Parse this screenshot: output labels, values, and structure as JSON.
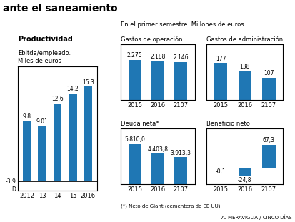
{
  "title": "ante el saneamiento",
  "annotations": [
    "En el primer semestre. Millones de euros",
    "(*) Neto de Giant (cementera de EE UU)",
    "A. MERAVIGLIA / CINCO DÍAS"
  ],
  "chart_data": [
    {
      "type": "bar",
      "title": "Productividad",
      "subtitle": "Ebitda/empleado.\nMiles de euros",
      "categories": [
        "2012",
        "13",
        "14",
        "15",
        "2016"
      ],
      "values": [
        9.8,
        9.01,
        12.6,
        14.2,
        15.3
      ],
      "ylim": [
        -1.5,
        18.5
      ],
      "data_labels": true,
      "tick_labels": "x",
      "annotations": [
        "-3,9",
        "D"
      ]
    },
    {
      "type": "bar",
      "title": "Gastos de operación",
      "categories": [
        "2015",
        "2016",
        "2107"
      ],
      "values": [
        2275,
        2188,
        2146
      ],
      "value_labels": [
        "2.275",
        "2.188",
        "2.146"
      ],
      "ylim": [
        0,
        3139.5
      ],
      "data_labels": true,
      "tick_labels": "x"
    },
    {
      "type": "bar",
      "title": "Gastos de administración",
      "categories": [
        "2015",
        "2016",
        "2107"
      ],
      "values": [
        177,
        138,
        107
      ],
      "value_labels": [
        "177",
        "138",
        "107"
      ],
      "ylim": [
        0,
        265.5
      ],
      "data_labels": true,
      "tick_labels": "x"
    },
    {
      "type": "bar",
      "title": "Deuda neta*",
      "categories": [
        "2015",
        "2016",
        "2107"
      ],
      "values": [
        5810.0,
        4403.8,
        3913.3
      ],
      "value_labels": [
        "5.810,0",
        "4.403,8",
        "3.913,3"
      ],
      "ylim": [
        0,
        8017.8
      ],
      "data_labels": true,
      "tick_labels": "x"
    },
    {
      "type": "bar",
      "title": "Beneficio neto",
      "categories": [
        "2015",
        "2016",
        "2107"
      ],
      "values": [
        -0.1,
        -24.8,
        67.3
      ],
      "value_labels": [
        "-0,1",
        "-24,8",
        "67,3"
      ],
      "ylim": [
        -49.6,
        114.41
      ],
      "data_labels": true,
      "tick_labels": "x"
    }
  ]
}
